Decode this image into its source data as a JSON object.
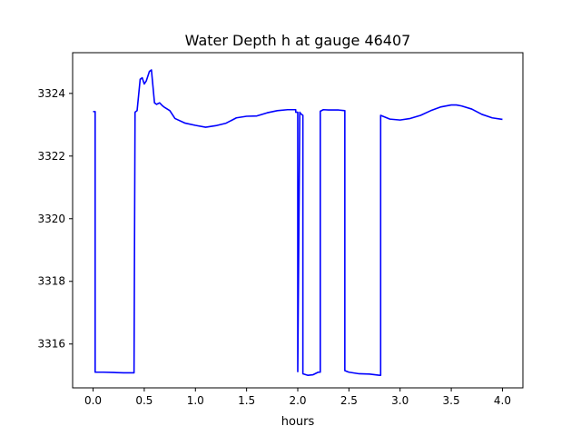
{
  "chart_data": {
    "type": "line",
    "title": "Water Depth h at gauge 46407",
    "xlabel": "hours",
    "ylabel": "",
    "xlim": [
      -0.2,
      4.2
    ],
    "ylim": [
      3314.6,
      3325.3
    ],
    "xticks": [
      0.0,
      0.5,
      1.0,
      1.5,
      2.0,
      2.5,
      3.0,
      3.5,
      4.0
    ],
    "xtick_labels": [
      "0.0",
      "0.5",
      "1.0",
      "1.5",
      "2.0",
      "2.5",
      "3.0",
      "3.5",
      "4.0"
    ],
    "yticks": [
      3316,
      3318,
      3320,
      3322,
      3324
    ],
    "ytick_labels": [
      "3316",
      "3318",
      "3320",
      "3322",
      "3324"
    ],
    "grid": false,
    "legend": "none",
    "series": [
      {
        "color": "#0000ff",
        "x": [
          0.0,
          0.02,
          0.02,
          0.1,
          0.2,
          0.3,
          0.4,
          0.41,
          0.43,
          0.46,
          0.48,
          0.5,
          0.52,
          0.55,
          0.57,
          0.58,
          0.6,
          0.62,
          0.65,
          0.68,
          0.7,
          0.75,
          0.8,
          0.9,
          1.0,
          1.1,
          1.2,
          1.3,
          1.4,
          1.5,
          1.6,
          1.7,
          1.8,
          1.9,
          1.98,
          1.98,
          2.0,
          2.0,
          2.02,
          2.03,
          2.03,
          2.05,
          2.05,
          2.1,
          2.15,
          2.2,
          2.22,
          2.22,
          2.25,
          2.3,
          2.4,
          2.46,
          2.46,
          2.5,
          2.6,
          2.7,
          2.8,
          2.81,
          2.81,
          2.9,
          3.0,
          3.1,
          3.2,
          3.3,
          3.4,
          3.5,
          3.55,
          3.6,
          3.7,
          3.8,
          3.9,
          4.0
        ],
        "y": [
          3323.42,
          3323.42,
          3315.1,
          3315.1,
          3315.09,
          3315.08,
          3315.08,
          3323.4,
          3323.45,
          3324.45,
          3324.5,
          3324.3,
          3324.4,
          3324.7,
          3324.75,
          3324.4,
          3323.7,
          3323.65,
          3323.7,
          3323.6,
          3323.55,
          3323.45,
          3323.2,
          3323.05,
          3322.98,
          3322.92,
          3322.97,
          3323.05,
          3323.22,
          3323.27,
          3323.28,
          3323.38,
          3323.45,
          3323.48,
          3323.48,
          3323.4,
          3323.4,
          3315.12,
          3323.4,
          3323.35,
          3323.35,
          3323.3,
          3315.05,
          3315.0,
          3315.02,
          3315.1,
          3315.1,
          3323.43,
          3323.48,
          3323.47,
          3323.47,
          3323.45,
          3315.15,
          3315.1,
          3315.05,
          3315.04,
          3315.0,
          3315.0,
          3323.3,
          3323.18,
          3323.15,
          3323.2,
          3323.3,
          3323.45,
          3323.57,
          3323.63,
          3323.63,
          3323.6,
          3323.5,
          3323.33,
          3323.22,
          3323.17
        ]
      }
    ]
  }
}
